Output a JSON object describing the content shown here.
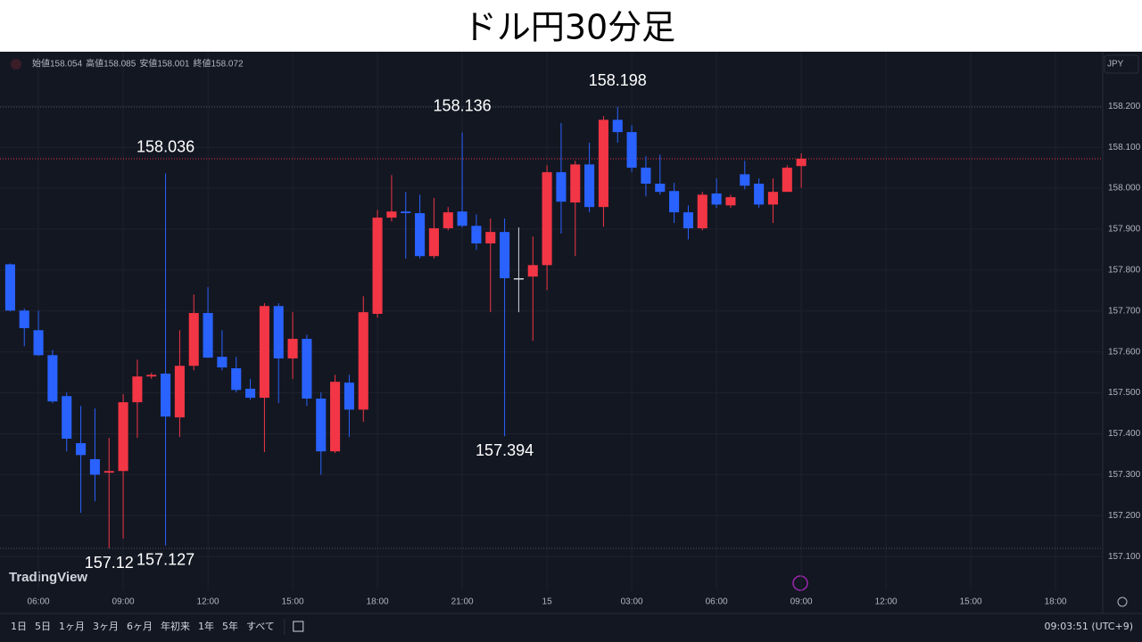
{
  "chart_data": {
    "type": "candlestick",
    "title": "ドル円30分足",
    "legend_labels": [
      "始値",
      "高値",
      "安値",
      "終値"
    ],
    "currency": "JPY",
    "logo": "TradingView",
    "ranges": [
      "1日",
      "5日",
      "1ヶ月",
      "3ヶ月",
      "6ヶ月",
      "年初来",
      "1年",
      "5年",
      "すべて"
    ],
    "clock": "09:03:51 (UTC+9)",
    "up_color": "#f23645",
    "down_color": "#2962ff",
    "price_line_color": "#f23645",
    "grid": true,
    "x": [
      5,
      5.5,
      6,
      6.5,
      7,
      7.5,
      8,
      8.5,
      9,
      9.5,
      10,
      10.5,
      11,
      11.5,
      12,
      12.5,
      13,
      13.5,
      14,
      14.5,
      15,
      15.5,
      16,
      16.5,
      17,
      17.5,
      18,
      18.5,
      19,
      19.5,
      20,
      20.5,
      21,
      21.5,
      22,
      22.5,
      23,
      23.5,
      24,
      24.5,
      25,
      25.5,
      26,
      26.5,
      27,
      27.5,
      28,
      28.5,
      29,
      29.5,
      30,
      30.5,
      31,
      31.5,
      32,
      32.5,
      33
    ],
    "open": [
      157.814,
      157.701,
      157.653,
      157.592,
      157.492,
      157.377,
      157.338,
      157.305,
      157.309,
      157.477,
      157.54,
      157.547,
      157.44,
      157.566,
      157.695,
      157.588,
      157.56,
      157.51,
      157.488,
      157.712,
      157.584,
      157.632,
      157.486,
      157.357,
      157.525,
      157.459,
      157.693,
      157.928,
      157.943,
      157.939,
      157.834,
      157.902,
      157.943,
      157.908,
      157.865,
      157.893,
      157.78,
      157.784,
      157.812,
      158.039,
      157.965,
      158.058,
      157.954,
      158.167,
      158.137,
      158.05,
      158.011,
      157.993,
      157.941,
      157.902,
      157.987,
      157.958,
      158.034,
      158.011,
      157.96,
      157.991,
      158.054
    ],
    "high": [
      157.816,
      157.706,
      157.701,
      157.605,
      157.501,
      157.468,
      157.462,
      157.39,
      157.497,
      157.581,
      157.549,
      158.036,
      157.653,
      157.74,
      157.758,
      157.653,
      157.588,
      157.534,
      157.719,
      157.719,
      157.697,
      157.642,
      157.501,
      157.544,
      157.544,
      157.736,
      157.947,
      158.032,
      157.991,
      157.984,
      157.976,
      157.954,
      158.136,
      157.936,
      157.926,
      157.926,
      157.904,
      157.882,
      158.056,
      158.159,
      158.067,
      158.111,
      158.176,
      158.198,
      158.154,
      158.078,
      158.082,
      158.013,
      157.958,
      157.991,
      158.024,
      157.984,
      158.067,
      158.024,
      158.024,
      158.056,
      158.085
    ],
    "low": [
      157.699,
      157.614,
      157.59,
      157.475,
      157.357,
      157.207,
      157.235,
      157.12,
      157.144,
      157.39,
      157.534,
      157.127,
      157.392,
      157.555,
      157.586,
      157.555,
      157.501,
      157.483,
      157.355,
      157.475,
      157.534,
      157.468,
      157.3,
      157.353,
      157.392,
      157.429,
      157.684,
      157.919,
      157.828,
      157.828,
      157.828,
      157.897,
      157.904,
      157.849,
      157.697,
      157.394,
      157.697,
      157.627,
      157.751,
      157.889,
      157.834,
      157.941,
      157.906,
      158.111,
      158.039,
      157.98,
      157.984,
      157.915,
      157.875,
      157.897,
      157.952,
      157.952,
      157.997,
      157.952,
      157.915,
      157.991,
      158.001
    ],
    "close": [
      157.701,
      157.658,
      157.592,
      157.479,
      157.388,
      157.348,
      157.3,
      157.309,
      157.477,
      157.54,
      157.544,
      157.442,
      157.566,
      157.695,
      157.586,
      157.562,
      157.507,
      157.488,
      157.712,
      157.584,
      157.632,
      157.486,
      157.357,
      157.527,
      157.459,
      157.697,
      157.928,
      157.943,
      157.939,
      157.834,
      157.902,
      157.941,
      157.908,
      157.865,
      157.893,
      157.78,
      157.78,
      157.812,
      158.039,
      157.967,
      158.058,
      157.954,
      158.167,
      158.137,
      158.05,
      158.011,
      157.991,
      157.941,
      157.902,
      157.984,
      157.96,
      157.978,
      158.006,
      157.96,
      157.991,
      158.05,
      158.072
    ],
    "annotations": [
      158.198,
      158.136,
      158.036,
      157.127,
      157.12,
      157.394
    ],
    "xlim": [
      4.64,
      43.67
    ],
    "ylim": [
      157.022,
      158.329
    ],
    "xticks": [
      {
        "value": 6,
        "label": "06:00"
      },
      {
        "value": 9,
        "label": "09:00"
      },
      {
        "value": 12,
        "label": "12:00"
      },
      {
        "value": 15,
        "label": "15:00"
      },
      {
        "value": 18,
        "label": "18:00"
      },
      {
        "value": 21,
        "label": "21:00"
      },
      {
        "value": 24,
        "label": "15"
      },
      {
        "value": 27,
        "label": "03:00"
      },
      {
        "value": 30,
        "label": "06:00"
      },
      {
        "value": 33,
        "label": "09:00"
      },
      {
        "value": 36,
        "label": "12:00"
      },
      {
        "value": 39,
        "label": "15:00"
      },
      {
        "value": 42,
        "label": "18:00"
      }
    ],
    "yticks": [
      {
        "value": 157.1,
        "label": "157.100"
      },
      {
        "value": 157.2,
        "label": "157.200"
      },
      {
        "value": 157.3,
        "label": "157.300"
      },
      {
        "value": 157.4,
        "label": "157.400"
      },
      {
        "value": 157.5,
        "label": "157.500"
      },
      {
        "value": 157.6,
        "label": "157.600"
      },
      {
        "value": 157.7,
        "label": "157.700"
      },
      {
        "value": 157.8,
        "label": "157.800"
      },
      {
        "value": 157.9,
        "label": "157.900"
      },
      {
        "value": 158.0,
        "label": "158.000"
      },
      {
        "value": 158.1,
        "label": "158.100"
      },
      {
        "value": 158.2,
        "label": "158.200"
      }
    ]
  }
}
